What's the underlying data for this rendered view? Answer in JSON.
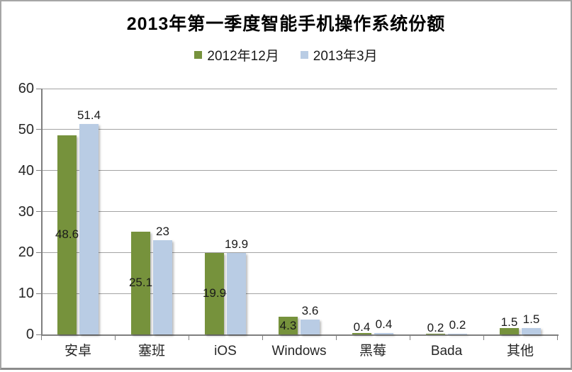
{
  "chart_data": {
    "type": "bar",
    "title": "2013年第一季度智能手机操作系统份额",
    "categories": [
      "安卓",
      "塞班",
      "iOS",
      "Windows",
      "黑莓",
      "Bada",
      "其他"
    ],
    "series": [
      {
        "name": "2012年12月",
        "color": "#76923C",
        "values": [
          48.6,
          25.1,
          19.9,
          4.3,
          0.4,
          0.2,
          1.5
        ],
        "labels": [
          "48.6",
          "25.1",
          "19.9",
          "4.3",
          "0.4",
          "0.2",
          "1.5"
        ],
        "label_position": "inside-center"
      },
      {
        "name": "2013年3月",
        "color": "#B9CCE4",
        "values": [
          51.4,
          23,
          19.9,
          3.6,
          0.4,
          0.2,
          1.5
        ],
        "labels": [
          "51.4",
          "23",
          "19.9",
          "3.6",
          "0.4",
          "0.2",
          "1.5"
        ],
        "label_position": "outside-end"
      }
    ],
    "xlabel": "",
    "ylabel": "",
    "ylim": [
      0,
      60
    ],
    "yticks": [
      0,
      10,
      20,
      30,
      40,
      50,
      60
    ],
    "grid": true,
    "legend_position": "top",
    "colors": {
      "grid": "#A3A3A3",
      "axis": "#7F7F7F",
      "text": "#262626",
      "label_text": "#1A1A1A"
    }
  }
}
